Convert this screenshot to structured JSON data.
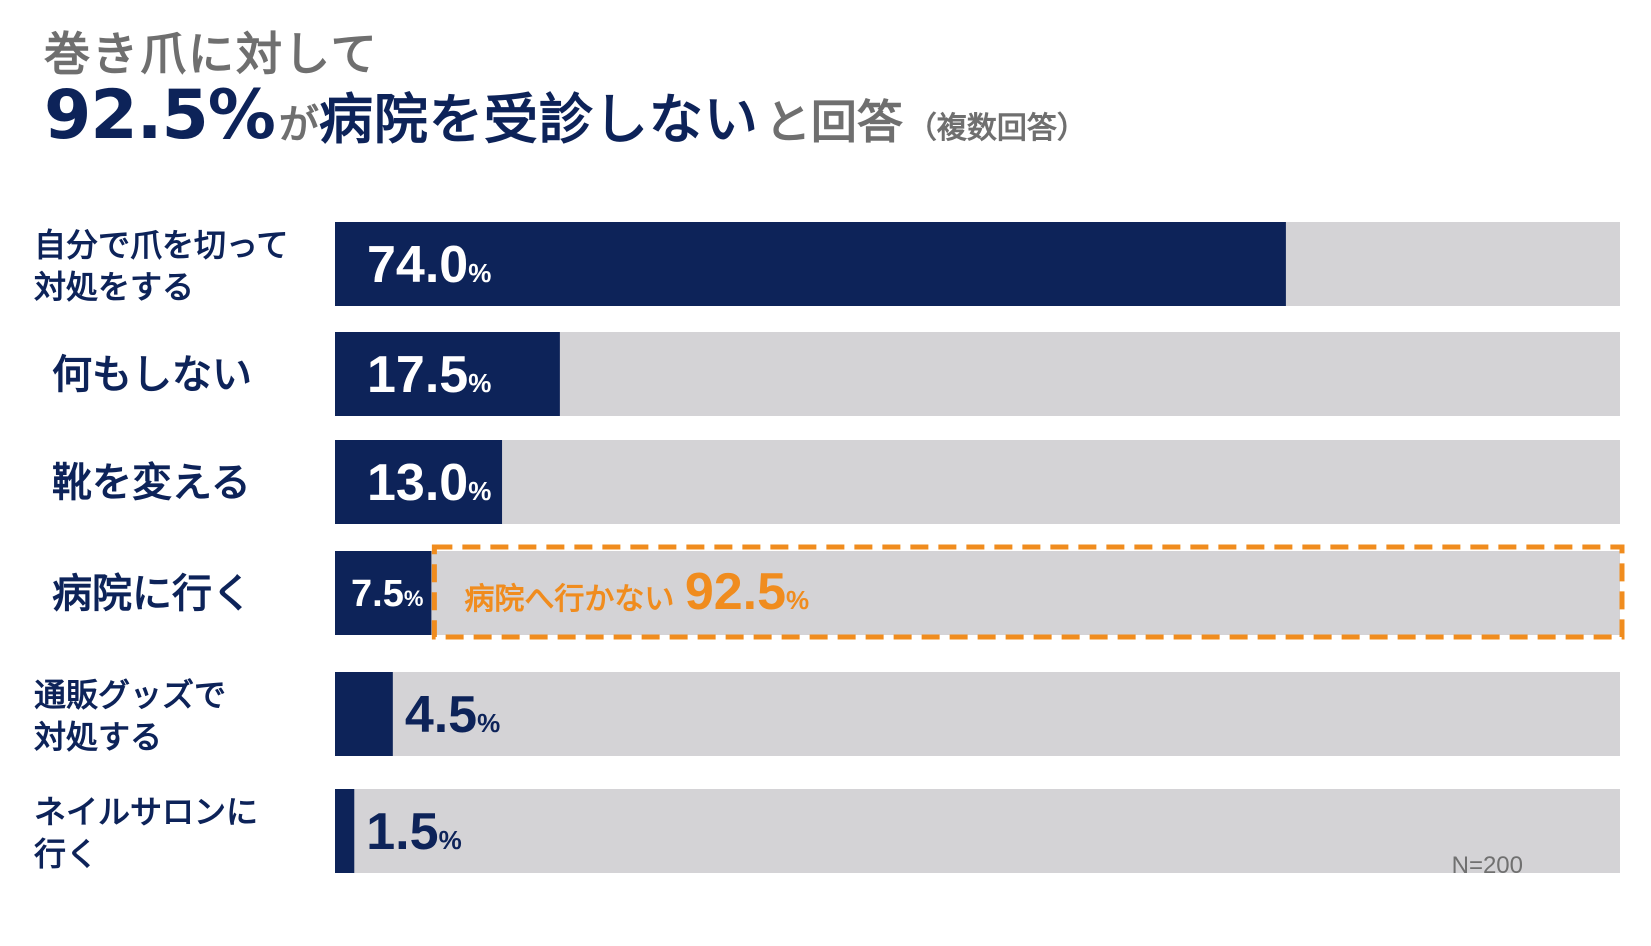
{
  "title": {
    "line1": "巻き爪に対して",
    "line2_value": "92.5%",
    "line2_particle": "が",
    "line2_main": "病院を受診しない",
    "line2_to": "と回答",
    "line2_note": "（複数回答）"
  },
  "note": "N=200",
  "colors": {
    "bar": "#0d2359",
    "track": "#d4d3d6",
    "highlight": "#f08c1e",
    "label": "#0d2359",
    "title_gray": "#6f6f6f"
  },
  "chart_data": {
    "type": "bar",
    "orientation": "horizontal",
    "xlim": [
      0,
      100
    ],
    "unit": "%",
    "categories": [
      [
        "自分で爪を切って",
        "対処をする"
      ],
      [
        "何もしない"
      ],
      [
        "靴を変える"
      ],
      [
        "病院に行く"
      ],
      [
        "通販グッズで",
        "対処する"
      ],
      [
        "ネイルサロンに",
        "行く"
      ]
    ],
    "values": [
      74.0,
      17.5,
      13.0,
      7.5,
      4.5,
      1.5
    ],
    "value_labels": [
      "74.0",
      "17.5",
      "13.0",
      "7.5",
      "4.5",
      "1.5"
    ],
    "annotation": {
      "category_index": 3,
      "text": "病院へ行かない",
      "value": "92.5",
      "unit": "%"
    }
  }
}
